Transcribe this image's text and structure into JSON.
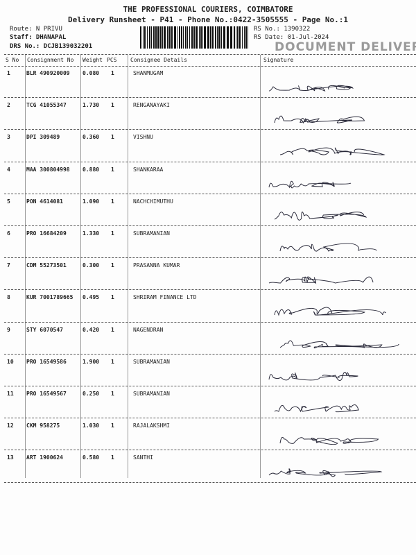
{
  "header": {
    "company": "THE PROFESSIONAL COURIERS, COIMBATORE",
    "subtitle": "Delivery Runsheet - P41 - Phone No.:0422-3505555 - Page No.:1",
    "route": "Route: N PRIVU",
    "staff": "Staff: DHANAPAL",
    "drs": "DRS No.: DCJB139032201",
    "rs_no": "RS No.: 1390322",
    "rs_date": "RS Date: 01-Jul-2024",
    "stamp": "DOCUMENT DELIVERY"
  },
  "table": {
    "columns": [
      "S No",
      "Consignment No",
      "Weight",
      "PCS",
      "Consignee Details",
      "Signature"
    ],
    "rows": [
      {
        "sno": "1",
        "cons": "BLR 490920009",
        "weight": "0.080",
        "pcs": "1",
        "name": "SHANMUGAM"
      },
      {
        "sno": "2",
        "cons": "TCG 41055347",
        "weight": "1.730",
        "pcs": "1",
        "name": "RENGANAYAKI"
      },
      {
        "sno": "3",
        "cons": "DPI 309489",
        "weight": "0.360",
        "pcs": "1",
        "name": "VISHNU"
      },
      {
        "sno": "4",
        "cons": "MAA 300804998",
        "weight": "0.880",
        "pcs": "1",
        "name": "SHANKARAA"
      },
      {
        "sno": "5",
        "cons": "PON 4614081",
        "weight": "1.090",
        "pcs": "1",
        "name": "NACHCHIMUTHU"
      },
      {
        "sno": "6",
        "cons": "PRO 16684209",
        "weight": "1.330",
        "pcs": "1",
        "name": "SUBRAMANIAN"
      },
      {
        "sno": "7",
        "cons": "CDM 55273501",
        "weight": "0.300",
        "pcs": "1",
        "name": "PRASANNA KUMAR"
      },
      {
        "sno": "8",
        "cons": "KUR 7001789665",
        "weight": "0.495",
        "pcs": "1",
        "name": "SHRIRAM FINANCE LTD"
      },
      {
        "sno": "9",
        "cons": "STY 6070547",
        "weight": "0.420",
        "pcs": "1",
        "name": "NAGENDRAN"
      },
      {
        "sno": "10",
        "cons": "PRO 16549586",
        "weight": "1.900",
        "pcs": "1",
        "name": "SUBRAMANIAN"
      },
      {
        "sno": "11",
        "cons": "PRO 16549567",
        "weight": "0.250",
        "pcs": "1",
        "name": "SUBRAMANIAN"
      },
      {
        "sno": "12",
        "cons": "CKM 958275",
        "weight": "1.030",
        "pcs": "1",
        "name": "RAJALAKSHMI"
      },
      {
        "sno": "13",
        "cons": "ART 1900624",
        "weight": "0.580",
        "pcs": "1",
        "name": "SANTHI"
      }
    ]
  }
}
